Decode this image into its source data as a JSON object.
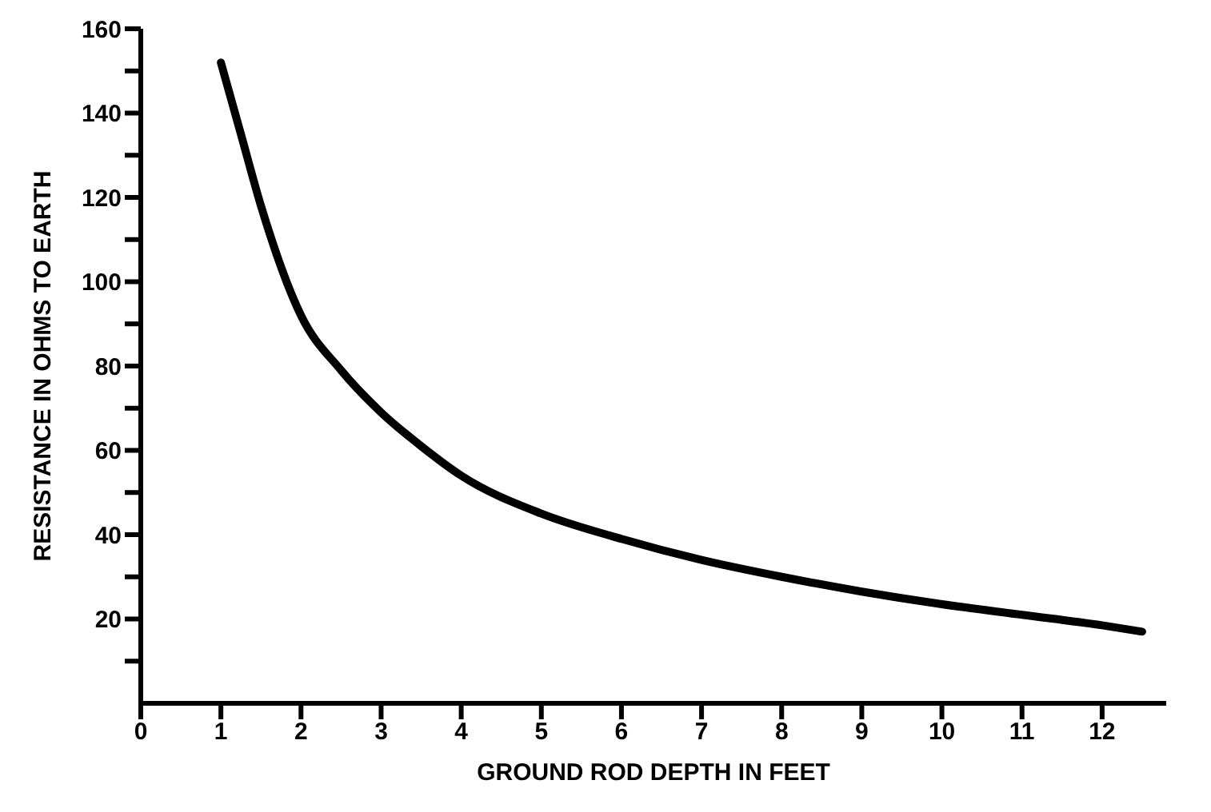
{
  "chart_data": {
    "type": "line",
    "xlabel": "GROUND ROD DEPTH IN FEET",
    "ylabel": "RESISTANCE IN OHMS TO EARTH",
    "x": [
      1,
      1.25,
      1.5,
      2,
      2.5,
      3,
      3.5,
      4,
      5,
      6,
      7,
      8,
      9,
      10,
      11,
      12,
      12.5
    ],
    "series": [
      {
        "color": "#000000",
        "values": [
          152,
          135,
          118,
          92,
          79,
          69,
          61,
          54,
          45,
          39,
          34,
          30,
          26.5,
          23.5,
          21,
          18.5,
          17
        ]
      }
    ],
    "xlim": [
      0,
      12.8
    ],
    "xticks": [
      0,
      1,
      2,
      3,
      4,
      5,
      6,
      7,
      8,
      9,
      10,
      11,
      12
    ],
    "ylim": [
      0,
      160
    ],
    "yticks": [
      {
        "value": 10,
        "label": null
      },
      20,
      {
        "value": 30,
        "label": null
      },
      40,
      {
        "value": 50,
        "label": null
      },
      60,
      {
        "value": 70,
        "label": null
      },
      80,
      {
        "value": 90,
        "label": null
      },
      100,
      {
        "value": 110,
        "label": null
      },
      120,
      {
        "value": 130,
        "label": null
      },
      140,
      {
        "value": 150,
        "label": null
      },
      160
    ],
    "grid": false,
    "legend": false,
    "marker": "none",
    "line_style": "solid"
  }
}
